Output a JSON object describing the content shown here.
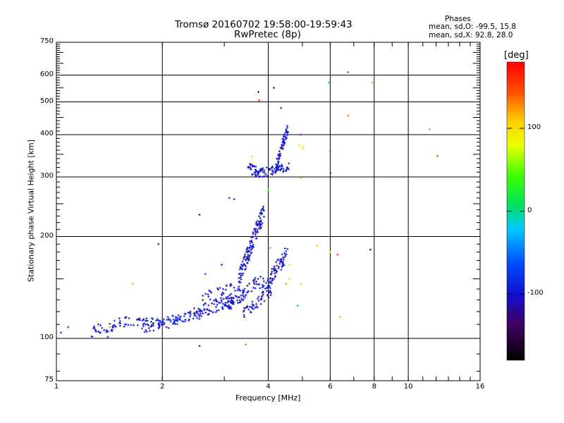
{
  "header": {
    "title_line1": "Tromsø 20160702 19:58:00-19:59:43",
    "title_line2": "RwPretec (8p)"
  },
  "phase_box": {
    "heading": "Phases",
    "line_o": "mean, sd,O: -99.5, 15.8",
    "line_x": "mean, sd,X:  92.8, 28.0"
  },
  "colorbar": {
    "unit_label": "[deg]",
    "ticks": [
      {
        "value": 100,
        "label": "100"
      },
      {
        "value": 0,
        "label": "0"
      },
      {
        "value": -100,
        "label": "-100"
      }
    ],
    "range": [
      -180,
      180
    ]
  },
  "chart_data": {
    "type": "scatter",
    "xlabel": "Frequency [MHz]",
    "ylabel": "Stationary phase Virtual Height [km]",
    "x_scale": "log",
    "y_scale": "log",
    "xlim": [
      1,
      16
    ],
    "ylim": [
      75,
      750
    ],
    "grid": true,
    "x_ticks": [
      {
        "value": 1,
        "label": "1"
      },
      {
        "value": 2,
        "label": "2"
      },
      {
        "value": 4,
        "label": "4"
      },
      {
        "value": 6,
        "label": "6"
      },
      {
        "value": 8,
        "label": "8"
      },
      {
        "value": 10,
        "label": "10"
      },
      {
        "value": 16,
        "label": "16"
      }
    ],
    "x_major_grid": [
      2,
      4,
      6,
      8,
      10
    ],
    "y_ticks": [
      {
        "value": 75,
        "label": "75"
      },
      {
        "value": 100,
        "label": "100"
      },
      {
        "value": 200,
        "label": "200"
      },
      {
        "value": 300,
        "label": "300"
      },
      {
        "value": 400,
        "label": "400"
      },
      {
        "value": 500,
        "label": "500"
      },
      {
        "value": 600,
        "label": "600"
      },
      {
        "value": 750,
        "label": "750"
      }
    ],
    "y_major_grid": [
      100,
      200,
      300,
      400,
      500,
      600
    ],
    "trace_segments": [
      {
        "f0": 1.25,
        "f1": 1.6,
        "h0": 105,
        "h1": 112,
        "phase": -100,
        "n": 40,
        "spread": 0.04
      },
      {
        "f0": 1.6,
        "f1": 2.0,
        "h0": 112,
        "h1": 112,
        "phase": -95,
        "n": 35,
        "spread": 0.03
      },
      {
        "f0": 1.75,
        "f1": 2.3,
        "h0": 107,
        "h1": 112,
        "phase": -100,
        "n": 30,
        "spread": 0.03
      },
      {
        "f0": 2.0,
        "f1": 2.6,
        "h0": 112,
        "h1": 118,
        "phase": -90,
        "n": 45,
        "spread": 0.03
      },
      {
        "f0": 2.4,
        "f1": 3.2,
        "h0": 118,
        "h1": 128,
        "phase": -100,
        "n": 70,
        "spread": 0.04
      },
      {
        "f0": 2.6,
        "f1": 3.4,
        "h0": 130,
        "h1": 145,
        "phase": -100,
        "n": 40,
        "spread": 0.05
      },
      {
        "f0": 3.0,
        "f1": 3.9,
        "h0": 125,
        "h1": 150,
        "phase": -100,
        "n": 70,
        "spread": 0.05
      },
      {
        "f0": 3.4,
        "f1": 4.1,
        "h0": 118,
        "h1": 140,
        "phase": -105,
        "n": 50,
        "spread": 0.04
      },
      {
        "f0": 3.3,
        "f1": 3.9,
        "h0": 150,
        "h1": 240,
        "phase": -100,
        "n": 130,
        "spread": 0.06
      },
      {
        "f0": 3.8,
        "f1": 4.5,
        "h0": 135,
        "h1": 180,
        "phase": -100,
        "n": 60,
        "spread": 0.05
      },
      {
        "f0": 3.6,
        "f1": 4.6,
        "h0": 305,
        "h1": 320,
        "phase": -100,
        "n": 70,
        "spread": 0.03
      },
      {
        "f0": 3.5,
        "f1": 3.8,
        "h0": 330,
        "h1": 305,
        "phase": -100,
        "n": 25,
        "spread": 0.03
      },
      {
        "f0": 4.2,
        "f1": 4.55,
        "h0": 320,
        "h1": 420,
        "phase": -100,
        "n": 60,
        "spread": 0.04
      },
      {
        "f0": 4.3,
        "f1": 4.55,
        "h0": 160,
        "h1": 180,
        "phase": -95,
        "n": 15,
        "spread": 0.04
      }
    ],
    "scattered_points": [
      {
        "f": 1.03,
        "h": 104,
        "phase": -100
      },
      {
        "f": 1.08,
        "h": 108,
        "phase": -95
      },
      {
        "f": 1.4,
        "h": 101,
        "phase": -100
      },
      {
        "f": 1.42,
        "h": 108,
        "phase": 40
      },
      {
        "f": 1.65,
        "h": 145,
        "phase": 120
      },
      {
        "f": 1.95,
        "h": 190,
        "phase": -150
      },
      {
        "f": 2.55,
        "h": 95,
        "phase": -150
      },
      {
        "f": 2.55,
        "h": 232,
        "phase": -150
      },
      {
        "f": 2.65,
        "h": 155,
        "phase": -60
      },
      {
        "f": 2.95,
        "h": 165,
        "phase": -100
      },
      {
        "f": 3.1,
        "h": 260,
        "phase": -120
      },
      {
        "f": 3.2,
        "h": 258,
        "phase": -120
      },
      {
        "f": 3.45,
        "h": 96,
        "phase": 135
      },
      {
        "f": 3.75,
        "h": 535,
        "phase": -130
      },
      {
        "f": 3.77,
        "h": 505,
        "phase": 170
      },
      {
        "f": 4.15,
        "h": 550,
        "phase": -130
      },
      {
        "f": 4.35,
        "h": 480,
        "phase": -100
      },
      {
        "f": 4.0,
        "h": 275,
        "phase": 40
      },
      {
        "f": 3.6,
        "h": 345,
        "phase": 110
      },
      {
        "f": 4.05,
        "h": 185,
        "phase": 140
      },
      {
        "f": 4.6,
        "h": 165,
        "phase": 100
      },
      {
        "f": 4.6,
        "h": 150,
        "phase": 110
      },
      {
        "f": 4.5,
        "h": 145,
        "phase": 125
      },
      {
        "f": 4.95,
        "h": 400,
        "phase": -100
      },
      {
        "f": 4.9,
        "h": 372,
        "phase": 105
      },
      {
        "f": 5.0,
        "h": 365,
        "phase": 110
      },
      {
        "f": 5.05,
        "h": 370,
        "phase": 100
      },
      {
        "f": 4.95,
        "h": 298,
        "phase": 120
      },
      {
        "f": 4.95,
        "h": 145,
        "phase": 110
      },
      {
        "f": 4.85,
        "h": 125,
        "phase": -30
      },
      {
        "f": 5.5,
        "h": 188,
        "phase": 110
      },
      {
        "f": 5.95,
        "h": 570,
        "phase": -10
      },
      {
        "f": 6.0,
        "h": 358,
        "phase": 170
      },
      {
        "f": 6.02,
        "h": 308,
        "phase": 170
      },
      {
        "f": 6.0,
        "h": 180,
        "phase": 100
      },
      {
        "f": 6.3,
        "h": 177,
        "phase": 170
      },
      {
        "f": 6.4,
        "h": 116,
        "phase": 120
      },
      {
        "f": 6.75,
        "h": 612,
        "phase": 170
      },
      {
        "f": 6.75,
        "h": 455,
        "phase": 140
      },
      {
        "f": 7.8,
        "h": 183,
        "phase": -150
      },
      {
        "f": 7.9,
        "h": 570,
        "phase": 120
      },
      {
        "f": 11.5,
        "h": 415,
        "phase": -10
      },
      {
        "f": 12.1,
        "h": 346,
        "phase": 150
      }
    ]
  }
}
